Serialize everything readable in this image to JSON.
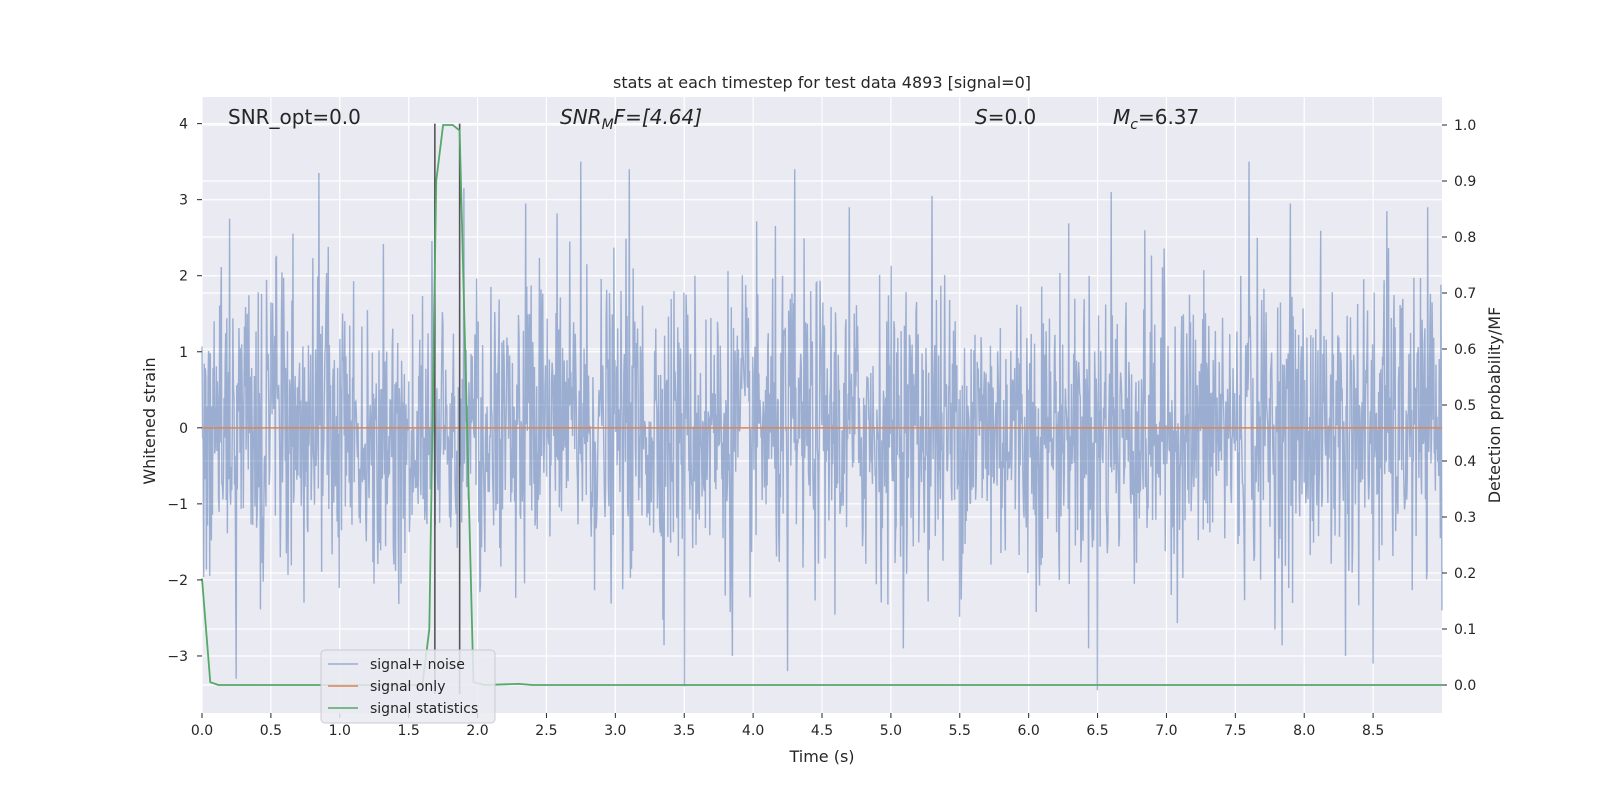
{
  "chart_data": {
    "type": "line",
    "title": "stats at each timestep for test data 4893 [signal=0]",
    "xlabel": "Time (s)",
    "ylabel": "Whitened strain",
    "y2label": "Detection probability/MF",
    "xlim": [
      0.0,
      9.0
    ],
    "ylim": [
      -3.75,
      4.35
    ],
    "y2lim": [
      -0.05,
      1.05
    ],
    "xticks": [
      "0.0",
      "0.5",
      "1.0",
      "1.5",
      "2.0",
      "2.5",
      "3.0",
      "3.5",
      "4.0",
      "4.5",
      "5.0",
      "5.5",
      "6.0",
      "6.5",
      "7.0",
      "7.5",
      "8.0",
      "8.5"
    ],
    "yticks": [
      "−3",
      "−2",
      "−1",
      "0",
      "1",
      "2",
      "3",
      "4"
    ],
    "y2ticks": [
      "0.0",
      "0.1",
      "0.2",
      "0.3",
      "0.4",
      "0.5",
      "0.6",
      "0.7",
      "0.8",
      "0.9",
      "1.0"
    ],
    "grid": true,
    "legend_position": "lower-left",
    "annotations": {
      "snr_opt": "SNR_opt=0.0",
      "snr_mf_main": "SNR",
      "snr_mf_sub": "M",
      "snr_mf_rest": "F=[4.64]",
      "s_main": "S",
      "s_rest": "=0.0",
      "mc_main": "M",
      "mc_sub": "c",
      "mc_rest": "=6.37"
    },
    "series": [
      {
        "name": "signal+ noise",
        "color": "#4c72b0",
        "alpha": 0.5,
        "description_stats": {
          "noise_std": 1.0,
          "samples": 2250
        },
        "peaks": [
          {
            "x": 0.85,
            "y": 3.35
          },
          {
            "x": 2.75,
            "y": 3.5
          },
          {
            "x": 3.1,
            "y": 3.4
          },
          {
            "x": 4.3,
            "y": 3.4
          },
          {
            "x": 7.6,
            "y": 3.5
          },
          {
            "x": 5.3,
            "y": 3.05
          },
          {
            "x": 1.9,
            "y": 3.15
          },
          {
            "x": 2.35,
            "y": 2.95
          },
          {
            "x": 4.7,
            "y": 2.9
          },
          {
            "x": 0.2,
            "y": 2.75
          },
          {
            "x": 6.6,
            "y": 3.1
          },
          {
            "x": 7.9,
            "y": 2.95
          },
          {
            "x": 8.6,
            "y": 2.85
          },
          {
            "x": 0.25,
            "y": -3.3
          },
          {
            "x": 3.5,
            "y": -3.4
          },
          {
            "x": 4.25,
            "y": -3.2
          },
          {
            "x": 6.5,
            "y": -3.45
          },
          {
            "x": 8.5,
            "y": -3.1
          },
          {
            "x": 3.85,
            "y": -3.0
          },
          {
            "x": 8.3,
            "y": -3.0
          }
        ]
      },
      {
        "name": "signal only",
        "color": "#dd8452",
        "values_constant": 0.0
      },
      {
        "name": "signal statistics",
        "color": "#55a868",
        "axis": "right",
        "x": [
          0.0,
          0.06,
          0.12,
          0.2,
          1.5,
          1.6,
          1.65,
          1.7,
          1.75,
          1.82,
          1.87,
          1.92,
          1.97,
          2.05,
          2.3,
          2.4,
          9.0
        ],
        "y": [
          0.19,
          0.005,
          0.0,
          0.0,
          0.0,
          0.0,
          0.1,
          0.9,
          1.0,
          1.0,
          0.99,
          0.5,
          0.005,
          0.0,
          0.002,
          0.0,
          0.0
        ]
      }
    ],
    "vlines": [
      1.69,
      1.87
    ]
  }
}
